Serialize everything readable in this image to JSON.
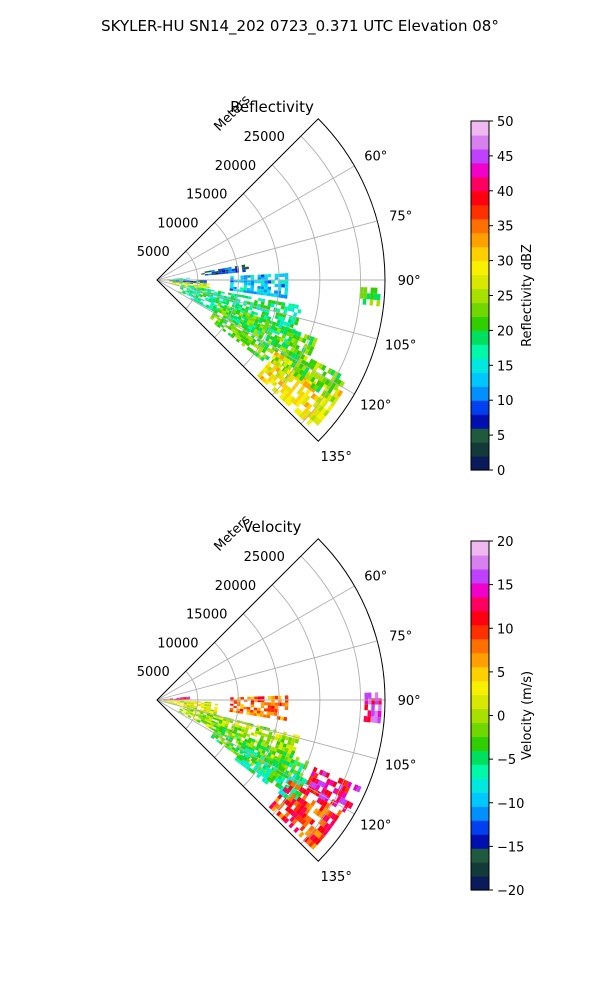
{
  "figure": {
    "suptitle": "SKYLER-HU  SN14_202  0723_0.371 UTC Elevation 08°"
  },
  "chart_data": [
    {
      "type": "heatmap",
      "projection": "polar-sector",
      "title": "Reflectivity",
      "radial_axis_label": "Meters",
      "radial_range": [
        0,
        28000
      ],
      "radial_ticks": [
        5000,
        10000,
        15000,
        20000,
        25000
      ],
      "radial_tick_labels": [
        "5000",
        "10000",
        "15000",
        "20000",
        "25000"
      ],
      "azimuth_range_deg": [
        45,
        135
      ],
      "azimuth_ticks_deg": [
        60,
        75,
        90,
        105,
        120,
        135
      ],
      "azimuth_tick_labels": [
        "60°",
        "75°",
        "90°",
        "105°",
        "120°",
        "135°"
      ],
      "grid": true,
      "colorbar": {
        "label": "Reflectivity dBZ",
        "range": [
          0,
          50
        ],
        "ticks": [
          0,
          5,
          10,
          15,
          20,
          25,
          30,
          35,
          40,
          45,
          50
        ],
        "tick_labels": [
          "0",
          "5",
          "10",
          "15",
          "20",
          "25",
          "30",
          "35",
          "40",
          "45",
          "50"
        ],
        "colors": [
          "#0a1a5a",
          "#123a38",
          "#1f5a3e",
          "#0010b0",
          "#0040f0",
          "#0090ff",
          "#00c8ff",
          "#00e8e0",
          "#00f8a8",
          "#00e060",
          "#30d000",
          "#70d800",
          "#a8e000",
          "#d8e800",
          "#f8f000",
          "#ffd000",
          "#ffa000",
          "#ff7000",
          "#ff3000",
          "#ff0010",
          "#ff0060",
          "#f000c8",
          "#c040ff",
          "#d880f0",
          "#f0b8f0"
        ]
      },
      "echo_regions": [
        {
          "az_range": [
            86,
            90
          ],
          "r_range": [
            300,
            4000
          ],
          "value": 17
        },
        {
          "az_range": [
            90,
            96
          ],
          "r_range": [
            1500,
            6000
          ],
          "value": 8
        },
        {
          "az_range": [
            94,
            104
          ],
          "r_range": [
            1500,
            6500
          ],
          "value": 26
        },
        {
          "az_range": [
            100,
            118
          ],
          "r_range": [
            3000,
            18000
          ],
          "value": 18
        },
        {
          "az_range": [
            110,
            126
          ],
          "r_range": [
            8000,
            21000
          ],
          "value": 22
        },
        {
          "az_range": [
            121,
            133
          ],
          "r_range": [
            17000,
            26500
          ],
          "value": 29
        },
        {
          "az_range": [
            117,
            124
          ],
          "r_range": [
            20000,
            26000
          ],
          "value": 23
        },
        {
          "az_range": [
            87,
            98
          ],
          "r_range": [
            9000,
            16000
          ],
          "value": 13
        },
        {
          "az_range": [
            80,
            84
          ],
          "r_range": [
            5500,
            11000
          ],
          "value": 8
        },
        {
          "az_range": [
            92,
            96
          ],
          "r_range": [
            25000,
            27500
          ],
          "value": 22
        }
      ]
    },
    {
      "type": "heatmap",
      "projection": "polar-sector",
      "title": "Velocity",
      "radial_axis_label": "Meters",
      "radial_range": [
        0,
        28000
      ],
      "radial_ticks": [
        5000,
        10000,
        15000,
        20000,
        25000
      ],
      "radial_tick_labels": [
        "5000",
        "10000",
        "15000",
        "20000",
        "25000"
      ],
      "azimuth_range_deg": [
        45,
        135
      ],
      "azimuth_ticks_deg": [
        60,
        75,
        90,
        105,
        120,
        135
      ],
      "azimuth_tick_labels": [
        "60°",
        "75°",
        "90°",
        "105°",
        "120°",
        "135°"
      ],
      "grid": true,
      "colorbar": {
        "label": "Velocity (m/s)",
        "range": [
          -20,
          20
        ],
        "ticks": [
          -20,
          -15,
          -10,
          -5,
          0,
          5,
          10,
          15,
          20
        ],
        "tick_labels": [
          "−20",
          "−15",
          "−10",
          "−5",
          "0",
          "5",
          "10",
          "15",
          "20"
        ],
        "colors": [
          "#0a1a5a",
          "#123a38",
          "#1f5a3e",
          "#0010b0",
          "#0040f0",
          "#0090ff",
          "#00c8ff",
          "#00e8e0",
          "#00f8a8",
          "#00e060",
          "#30d000",
          "#70d800",
          "#a8e000",
          "#d8e800",
          "#f8f000",
          "#ffd000",
          "#ffa000",
          "#ff7000",
          "#ff3000",
          "#ff0010",
          "#ff0060",
          "#f000c8",
          "#c040ff",
          "#d880f0",
          "#f0b8f0"
        ]
      },
      "echo_regions": [
        {
          "az_range": [
            84,
            90
          ],
          "r_range": [
            300,
            4000
          ],
          "value": 13
        },
        {
          "az_range": [
            92,
            104
          ],
          "r_range": [
            800,
            7500
          ],
          "value": 2
        },
        {
          "az_range": [
            104,
            118
          ],
          "r_range": [
            3000,
            18000
          ],
          "value": 0
        },
        {
          "az_range": [
            112,
            124
          ],
          "r_range": [
            8000,
            20000
          ],
          "value": -3
        },
        {
          "az_range": [
            118,
            127
          ],
          "r_range": [
            12000,
            21000
          ],
          "value": -5
        },
        {
          "az_range": [
            121,
            133
          ],
          "r_range": [
            19000,
            26500
          ],
          "value": 10
        },
        {
          "az_range": [
            113,
            120
          ],
          "r_range": [
            21000,
            27000
          ],
          "value": 13
        },
        {
          "az_range": [
            88,
            98
          ],
          "r_range": [
            9000,
            16000
          ],
          "value": 8
        },
        {
          "az_range": [
            88,
            95
          ],
          "r_range": [
            25500,
            27500
          ],
          "value": 15
        }
      ]
    }
  ]
}
